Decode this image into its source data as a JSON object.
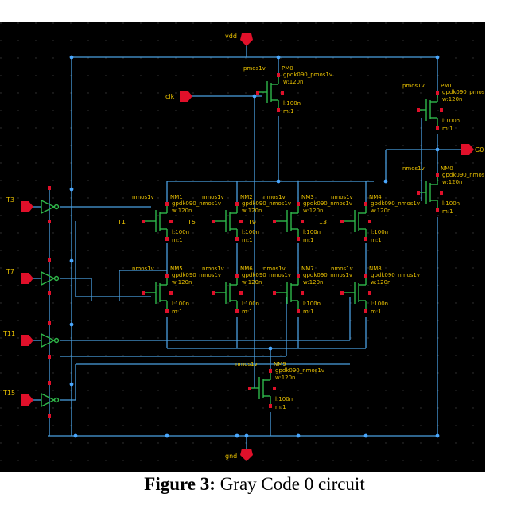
{
  "caption": {
    "prefix": "Figure 3:",
    "text": " Gray Code 0 circuit"
  },
  "colors": {
    "background": "#000000",
    "wire": "#4a9fe0",
    "device": "#2fb84a",
    "terminal": "#e0102a",
    "label": "#e8c000",
    "grid": "#2a2a2a"
  },
  "pins": {
    "vdd": "vdd",
    "gnd": "gnd",
    "clk": "clk",
    "out": "G0",
    "in1": "T3",
    "in2": "T7",
    "in3": "T11",
    "in4": "T15"
  },
  "inputs_left": [
    "T3",
    "T7",
    "T11",
    "T15"
  ],
  "internal_nets": [
    "T1",
    "T5",
    "T9",
    "T13"
  ],
  "nmos": {
    "type": "nmos1v",
    "model": "gpdk090_nmos1v",
    "w": "w:120n",
    "l": "l:100n",
    "m": "m:1"
  },
  "pmos": {
    "type": "pmos1v",
    "model": "gpdk090_pmos1v",
    "w": "w:120n",
    "l": "l:100n",
    "m": "m:1"
  },
  "nmos_instances": [
    "NM0",
    "NM1",
    "NM2",
    "NM3",
    "NM4",
    "NM5",
    "NM6",
    "NM7",
    "NM8",
    "NM9"
  ],
  "pmos_instances": [
    "PM0",
    "PM1"
  ]
}
